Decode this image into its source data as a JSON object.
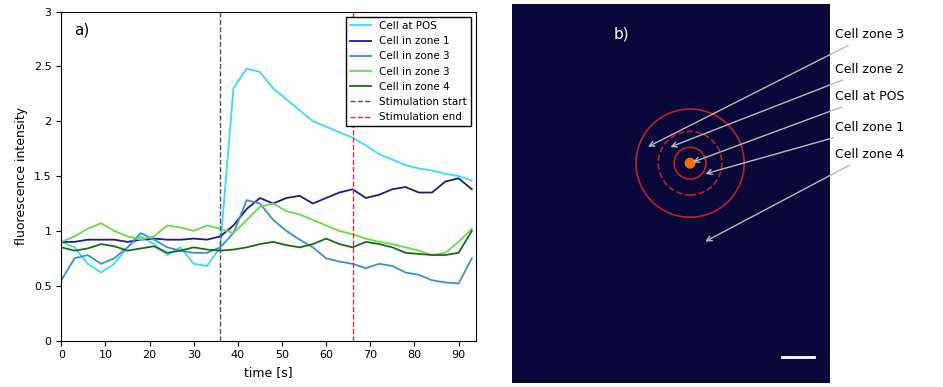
{
  "chart_data": {
    "type": "line",
    "label": "a)",
    "x_label": "time [s]",
    "y_label": "fluorescence intensity",
    "xlim": [
      0,
      94
    ],
    "xticks": [
      0,
      10,
      20,
      30,
      40,
      50,
      60,
      70,
      80,
      90
    ],
    "ylim": [
      0,
      3
    ],
    "yticks": [
      0,
      0.5,
      1,
      1.5,
      2,
      2.5,
      3
    ],
    "legend": "upper right",
    "x": [
      0,
      3,
      6,
      9,
      12,
      15,
      18,
      21,
      24,
      27,
      30,
      33,
      36,
      39,
      42,
      45,
      48,
      51,
      54,
      57,
      60,
      63,
      66,
      69,
      72,
      75,
      78,
      81,
      84,
      87,
      90,
      93
    ],
    "series": [
      {
        "name": "Cell at POS",
        "color": "#33dff0",
        "values": [
          0.9,
          0.85,
          0.7,
          0.62,
          0.7,
          0.85,
          0.95,
          0.88,
          0.78,
          0.85,
          0.7,
          0.68,
          0.85,
          2.3,
          2.48,
          2.45,
          2.3,
          2.2,
          2.1,
          2.0,
          1.95,
          1.9,
          1.85,
          1.78,
          1.7,
          1.65,
          1.6,
          1.57,
          1.55,
          1.52,
          1.5,
          1.46
        ]
      },
      {
        "name": "Cell in zone 1",
        "color": "#1c1c82",
        "values": [
          0.9,
          0.9,
          0.92,
          0.92,
          0.92,
          0.9,
          0.92,
          0.93,
          0.92,
          0.92,
          0.93,
          0.92,
          0.95,
          1.05,
          1.2,
          1.3,
          1.25,
          1.3,
          1.32,
          1.25,
          1.3,
          1.35,
          1.38,
          1.3,
          1.33,
          1.38,
          1.4,
          1.35,
          1.35,
          1.45,
          1.48,
          1.38
        ]
      },
      {
        "name": "Cell in zone 3",
        "color": "#3b8fdb",
        "values": [
          0.55,
          0.75,
          0.78,
          0.7,
          0.75,
          0.85,
          0.98,
          0.92,
          0.85,
          0.82,
          0.8,
          0.8,
          0.85,
          0.98,
          1.28,
          1.25,
          1.1,
          1.0,
          0.92,
          0.85,
          0.75,
          0.72,
          0.7,
          0.66,
          0.7,
          0.68,
          0.62,
          0.6,
          0.55,
          0.53,
          0.52,
          0.75
        ]
      },
      {
        "name": "Cell in zone 3",
        "color": "#66dd44",
        "values": [
          0.9,
          0.95,
          1.02,
          1.07,
          1.0,
          0.95,
          0.92,
          0.95,
          1.05,
          1.03,
          1.0,
          1.05,
          1.02,
          0.98,
          1.1,
          1.22,
          1.25,
          1.18,
          1.15,
          1.1,
          1.05,
          1.0,
          0.97,
          0.93,
          0.9,
          0.88,
          0.85,
          0.82,
          0.78,
          0.8,
          0.9,
          1.02
        ]
      },
      {
        "name": "Cell in zone 4",
        "color": "#1a6b1a",
        "values": [
          0.85,
          0.82,
          0.84,
          0.88,
          0.86,
          0.82,
          0.84,
          0.86,
          0.8,
          0.82,
          0.85,
          0.83,
          0.82,
          0.83,
          0.85,
          0.88,
          0.9,
          0.87,
          0.85,
          0.88,
          0.93,
          0.88,
          0.85,
          0.9,
          0.88,
          0.85,
          0.8,
          0.79,
          0.78,
          0.78,
          0.8,
          1.0
        ]
      }
    ],
    "events": [
      {
        "name": "Stimulation start",
        "x": 36,
        "color": "#555555",
        "line_style": "dashed"
      },
      {
        "name": "Stimulation end",
        "x": 66,
        "color": "#e03030",
        "line_style": "dashed"
      }
    ]
  },
  "image": {
    "label": "b)",
    "annotations": [
      "Cell zone 3",
      "Cell zone 2",
      "Cell at POS",
      "Cell zone 1",
      "Cell zone 4"
    ]
  }
}
